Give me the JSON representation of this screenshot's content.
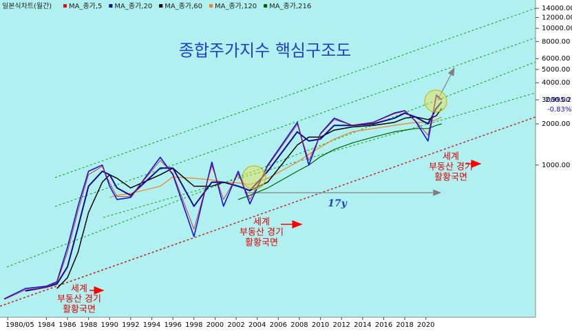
{
  "chart_data": {
    "type": "line",
    "title": "종합주가지수 핵심구조도",
    "chart_label": "일본식차트(월간)",
    "log_y": true,
    "grid": false,
    "x": [
      1980,
      1982,
      1984,
      1985,
      1986,
      1987,
      1988,
      1989.3,
      1990,
      1990.7,
      1992,
      1994.8,
      1996,
      1998,
      1999.7,
      2000.8,
      2002.2,
      2003.3,
      2005,
      2007.8,
      2008.9,
      2010,
      2011.3,
      2013,
      2015,
      2017,
      2018,
      2019,
      2020.2,
      2021,
      2021.5
    ],
    "price": {
      "color": "#1010e0",
      "values": [
        105,
        125,
        130,
        140,
        250,
        500,
        900,
        1000,
        700,
        560,
        580,
        1140,
        850,
        300,
        1050,
        500,
        900,
        520,
        1000,
        2050,
        1000,
        1700,
        2200,
        1950,
        2050,
        2400,
        2500,
        2100,
        1500,
        3250,
        2995.22
      ]
    },
    "last_value_label": "2,995.22",
    "change_label": "-0.83%",
    "series": [
      {
        "name": "MA_종가,5",
        "color": "#e01010",
        "values": [
          104,
          122,
          128,
          138,
          230,
          460,
          850,
          980,
          740,
          590,
          590,
          1080,
          870,
          340,
          990,
          560,
          860,
          560,
          980,
          1980,
          1080,
          1680,
          2150,
          1960,
          2040,
          2370,
          2480,
          2120,
          1650,
          3150,
          3050
        ]
      },
      {
        "name": "MA_종가,20",
        "color": "#0a0a90",
        "values": [
          null,
          120,
          128,
          135,
          180,
          350,
          700,
          900,
          850,
          680,
          600,
          950,
          950,
          500,
          750,
          750,
          700,
          650,
          900,
          1750,
          1500,
          1550,
          1950,
          1950,
          2000,
          2200,
          2400,
          2250,
          2000,
          2600,
          2900
        ]
      },
      {
        "name": "MA_종가,60",
        "color": "#000000",
        "values": [
          null,
          null,
          null,
          125,
          150,
          230,
          450,
          750,
          850,
          800,
          680,
          850,
          950,
          700,
          700,
          750,
          700,
          650,
          750,
          1400,
          1600,
          1600,
          1800,
          1900,
          1950,
          2050,
          2200,
          2250,
          2150,
          2300,
          2600
        ]
      },
      {
        "name": "MA_종가,120",
        "color": "#f08020",
        "values": [
          null,
          null,
          null,
          null,
          null,
          null,
          null,
          null,
          580,
          600,
          620,
          700,
          820,
          800,
          780,
          750,
          740,
          720,
          800,
          1050,
          1200,
          1350,
          1550,
          1750,
          1850,
          1950,
          2000,
          2050,
          2050,
          2150,
          2250
        ]
      },
      {
        "name": "MA_종가,216",
        "color": "#006000",
        "values": [
          null,
          null,
          null,
          null,
          null,
          null,
          null,
          null,
          null,
          null,
          null,
          null,
          null,
          null,
          null,
          null,
          560,
          600,
          680,
          900,
          1000,
          1150,
          1300,
          1450,
          1600,
          1750,
          1800,
          1850,
          1850,
          1950,
          2000
        ]
      }
    ],
    "xlim": [
      1979.6,
      2030.4
    ],
    "xticks": [
      {
        "value": 1980.33,
        "label": "1980/05"
      },
      1984,
      1986,
      1988,
      1990,
      1992,
      1994,
      1996,
      1998,
      2000,
      2002,
      2004,
      2006,
      2008,
      2010,
      2012,
      2014,
      2016,
      2018,
      2020
    ],
    "ylim": [
      78,
      15200
    ],
    "yticks": [
      {
        "value": 1000,
        "label": "1000.00"
      },
      {
        "value": 2000,
        "label": "2000.00"
      },
      {
        "value": 3000,
        "label": "3000.00"
      },
      {
        "value": 4000,
        "label": "4000.00"
      },
      {
        "value": 5000,
        "label": "5000.00"
      },
      {
        "value": 6000,
        "label": "6000.00"
      },
      {
        "value": 8000,
        "label": "8000.00"
      },
      {
        "value": 10000,
        "label": "10000.00"
      },
      {
        "value": 12000,
        "label": "12000.00"
      },
      {
        "value": 14000,
        "label": "14000.00"
      }
    ],
    "period_label": "17y",
    "annotations": [
      {
        "lines": [
          "세계",
          "부동산 경기",
          "활황국면"
        ]
      },
      {
        "lines": [
          "세계",
          "부동산 경기",
          "활황국면"
        ]
      },
      {
        "lines": [
          "세계",
          "부동산 경기",
          "활황국면"
        ]
      }
    ]
  }
}
